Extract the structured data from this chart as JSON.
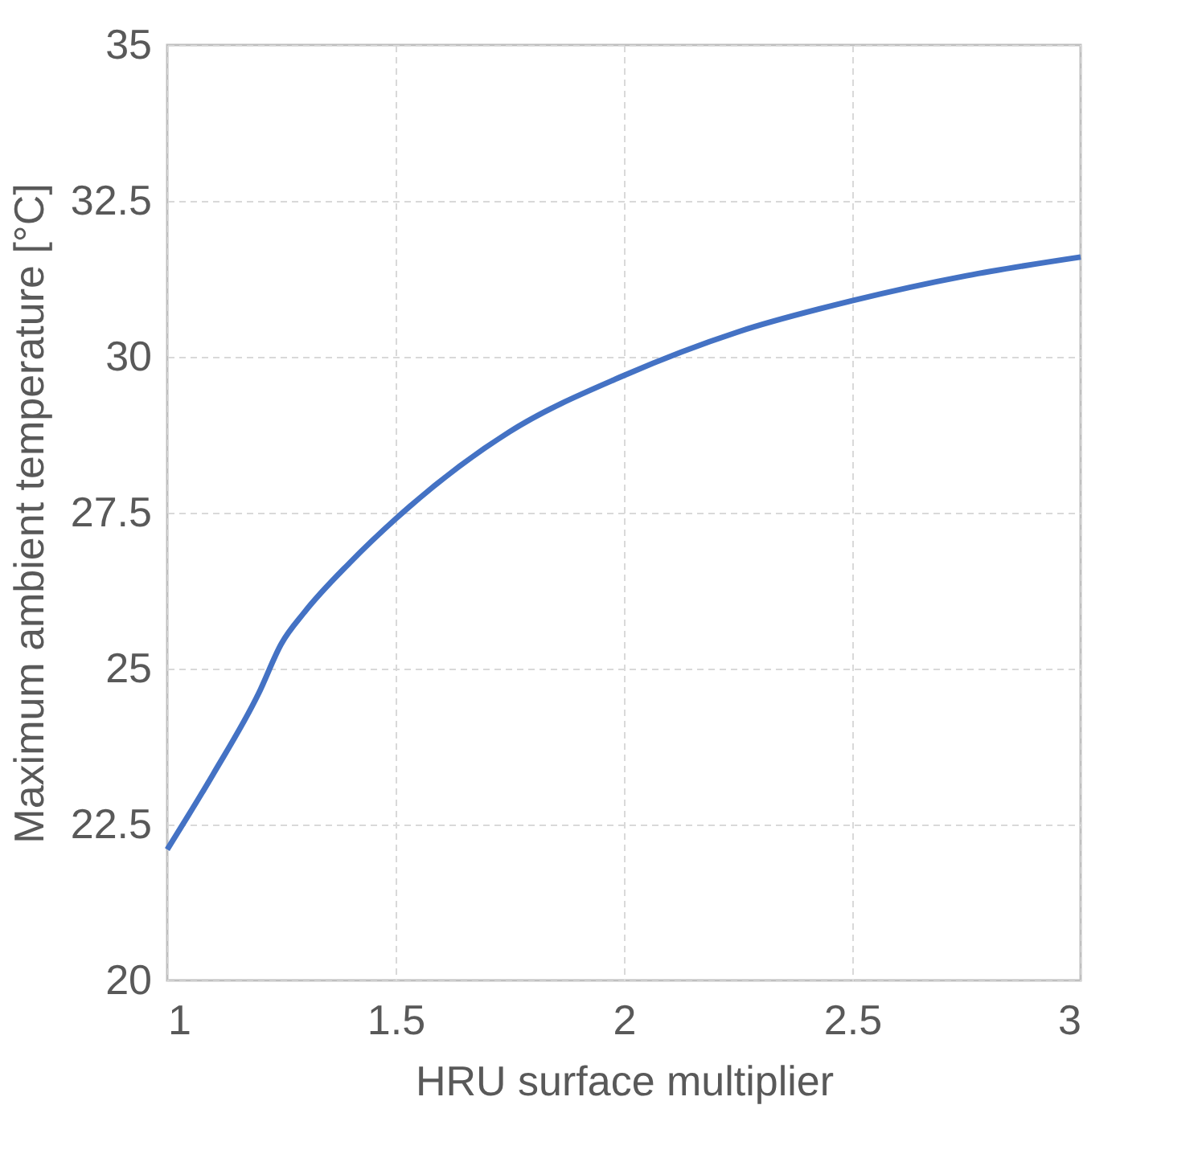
{
  "chart_data": {
    "type": "line",
    "xlabel": "HRU surface multiplier",
    "ylabel": "Maximum ambient temperature [°C]",
    "series": [
      {
        "color": "#4472c4",
        "x": [
          1,
          1.1,
          1.2,
          1.25,
          1.3,
          1.4,
          1.5,
          1.75,
          2,
          2.25,
          2.5,
          2.75,
          3
        ],
        "values": [
          22.1,
          23.3,
          24.6,
          25.4,
          25.9,
          26.7,
          27.4,
          28.8,
          29.7,
          30.4,
          30.9,
          31.3,
          31.6
        ]
      }
    ],
    "xlim": [
      1,
      3
    ],
    "xticks": [
      1,
      1.5,
      2,
      2.5,
      3
    ],
    "ylim": [
      20,
      35
    ],
    "yticks": [
      20,
      22.5,
      25,
      27.5,
      30,
      32.5,
      35
    ],
    "grid": true,
    "legend": false,
    "marker": "none",
    "line_style": "solid"
  }
}
